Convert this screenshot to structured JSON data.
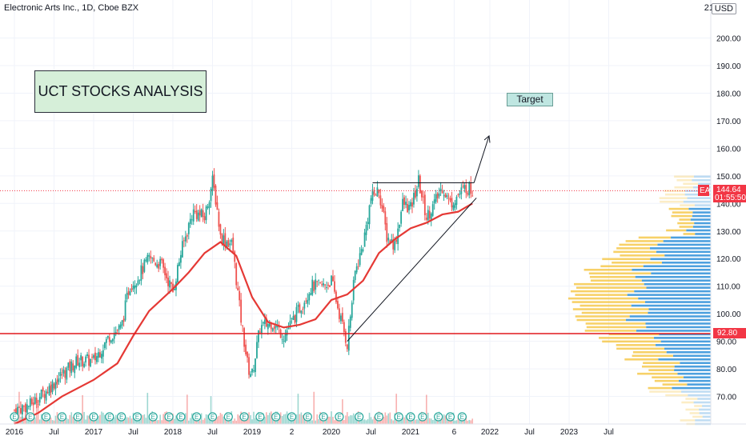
{
  "header": {
    "title": "Electronic Arts Inc., 1D, Cboe BZX",
    "currency": "USD",
    "top_partial_tick": "21"
  },
  "annotations": {
    "main_label": "UCT STOCKS ANALYSIS",
    "target_label": "Target"
  },
  "price_labels": {
    "symbol": "EA",
    "last_price": "144.64",
    "countdown": "01:55:50",
    "support_level": "92.80"
  },
  "colors": {
    "candle_up": "#26a69a",
    "candle_down": "#ef5350",
    "moving_average": "#e53935",
    "support_line": "#e0191d",
    "volume_profile_up": "#2e8fd8",
    "volume_profile_down": "#f5c542",
    "label_red": "#f23645",
    "background": "#ffffff"
  },
  "chart_data": {
    "type": "line",
    "title": "Electronic Arts Inc., 1D, Cboe BZX",
    "y_axis_ticks": [
      70,
      80,
      90,
      100,
      110,
      120,
      130,
      140,
      150,
      160,
      170,
      180,
      190,
      200
    ],
    "x_axis_ticks": [
      "2016",
      "Jul",
      "2017",
      "Jul",
      "2018",
      "Jul",
      "2019",
      "2",
      "2020",
      "Jul",
      "2021",
      "6",
      "2022",
      "Jul",
      "2023",
      "Jul"
    ],
    "ylim": [
      58,
      214
    ],
    "series": [
      {
        "values": [
          [
            2016.0,
            65
          ],
          [
            2016.2,
            67
          ],
          [
            2016.4,
            72
          ],
          [
            2016.6,
            78
          ],
          [
            2016.8,
            83
          ],
          [
            2017.0,
            83
          ],
          [
            2017.2,
            92
          ],
          [
            2017.35,
            95
          ],
          [
            2017.45,
            110
          ],
          [
            2017.55,
            113
          ],
          [
            2017.7,
            120
          ],
          [
            2017.85,
            118
          ],
          [
            2018.0,
            108
          ],
          [
            2018.1,
            122
          ],
          [
            2018.25,
            137
          ],
          [
            2018.4,
            135
          ],
          [
            2018.5,
            148
          ],
          [
            2018.55,
            140
          ],
          [
            2018.6,
            128
          ],
          [
            2018.75,
            125
          ],
          [
            2018.85,
            100
          ],
          [
            2018.95,
            80
          ],
          [
            2019.0,
            78
          ],
          [
            2019.1,
            95
          ],
          [
            2019.25,
            97
          ],
          [
            2019.4,
            92
          ],
          [
            2019.6,
            102
          ],
          [
            2019.75,
            110
          ],
          [
            2019.9,
            110
          ],
          [
            2020.0,
            112
          ],
          [
            2020.1,
            100
          ],
          [
            2020.2,
            89
          ],
          [
            2020.3,
            115
          ],
          [
            2020.4,
            125
          ],
          [
            2020.5,
            142
          ],
          [
            2020.6,
            145
          ],
          [
            2020.7,
            128
          ],
          [
            2020.8,
            125
          ],
          [
            2020.9,
            140
          ],
          [
            2021.0,
            138
          ],
          [
            2021.1,
            148
          ],
          [
            2021.2,
            135
          ],
          [
            2021.3,
            140
          ],
          [
            2021.4,
            146
          ],
          [
            2021.5,
            140
          ],
          [
            2021.6,
            143
          ],
          [
            2021.7,
            146
          ],
          [
            2021.78,
            144.64
          ]
        ]
      },
      {
        "values": [
          [
            2016.0,
            60
          ],
          [
            2016.3,
            64
          ],
          [
            2016.6,
            70
          ],
          [
            2017.0,
            76
          ],
          [
            2017.3,
            82
          ],
          [
            2017.5,
            92
          ],
          [
            2017.7,
            101
          ],
          [
            2018.0,
            109
          ],
          [
            2018.2,
            115
          ],
          [
            2018.4,
            122
          ],
          [
            2018.6,
            126
          ],
          [
            2018.8,
            121
          ],
          [
            2019.0,
            106
          ],
          [
            2019.2,
            97
          ],
          [
            2019.4,
            95
          ],
          [
            2019.6,
            96
          ],
          [
            2019.8,
            98
          ],
          [
            2020.0,
            105
          ],
          [
            2020.2,
            107
          ],
          [
            2020.4,
            112
          ],
          [
            2020.6,
            122
          ],
          [
            2020.8,
            127
          ],
          [
            2021.0,
            131
          ],
          [
            2021.2,
            133
          ],
          [
            2021.4,
            136
          ],
          [
            2021.6,
            137
          ],
          [
            2021.78,
            140
          ]
        ]
      }
    ],
    "support_level": 92.8,
    "last_price": 144.64
  }
}
